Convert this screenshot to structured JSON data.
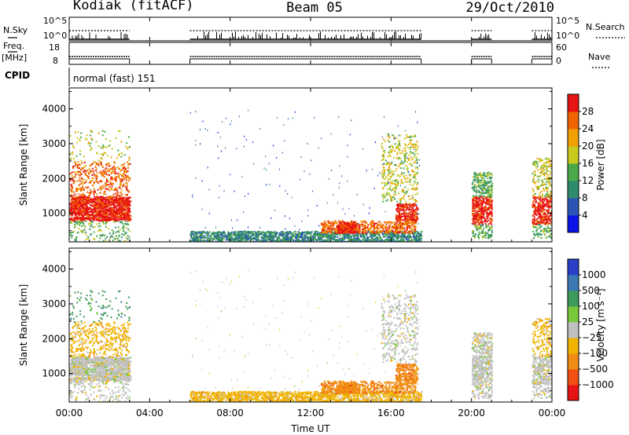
{
  "header": {
    "site": "Kodiak (fitACF)",
    "beam": "Beam 05",
    "date": "29/Oct/2010"
  },
  "noise_panel": {
    "left_label": "N.Sky",
    "right_label": "N.Search",
    "ticks": [
      "10^5",
      "10^0"
    ]
  },
  "freq_panel": {
    "left_label_top": "Freq.",
    "left_label_bottom": "[MHz]",
    "right_label": "Nave",
    "left_ticks": [
      "18",
      "8"
    ],
    "right_ticks": [
      "60",
      "0"
    ]
  },
  "cpid": {
    "label": "CPID",
    "value": "normal (fast) 151"
  },
  "chart_data": [
    {
      "type": "heatmap",
      "name": "power",
      "ylabel": "Slant Range [km]",
      "xlabel": "",
      "x_ticks": [
        "00:00",
        "04:00",
        "08:00",
        "12:00",
        "16:00",
        "20:00",
        "00:00"
      ],
      "xlim": [
        0,
        24
      ],
      "ylim": [
        180,
        4600
      ],
      "y_ticks": [
        1000,
        2000,
        3000,
        4000
      ],
      "colorbar": {
        "label": "Power [dB]",
        "ticks": [
          "4",
          "8",
          "12",
          "16",
          "20",
          "24",
          "28"
        ],
        "colors": [
          "#0a14e6",
          "#2a55b5",
          "#2f8a6e",
          "#4aa84a",
          "#c8c81e",
          "#f0a000",
          "#f06400",
          "#e61414"
        ]
      },
      "data_coverage_hours": [
        [
          0,
          3
        ],
        [
          6,
          17.5
        ],
        [
          20,
          21
        ],
        [
          23,
          24
        ]
      ]
    },
    {
      "type": "heatmap",
      "name": "velocity",
      "ylabel": "Slant Range [km]",
      "xlabel": "Time UT",
      "x_ticks": [
        "00:00",
        "04:00",
        "08:00",
        "12:00",
        "16:00",
        "20:00",
        "00:00"
      ],
      "xlim": [
        0,
        24
      ],
      "ylim": [
        180,
        4600
      ],
      "y_ticks": [
        1000,
        2000,
        3000,
        4000
      ],
      "colorbar": {
        "label": "Velocity [m s⁻¹]",
        "ticks": [
          "1000",
          "500",
          "100",
          "25",
          "−25",
          "−100",
          "−500",
          "−1000"
        ],
        "colors": [
          "#2a40c8",
          "#3c78b4",
          "#3c9a5a",
          "#78c83c",
          "#c0c0c0",
          "#f0b400",
          "#f08c14",
          "#f05014",
          "#e61414"
        ]
      },
      "data_coverage_hours": [
        [
          0,
          3
        ],
        [
          6,
          17.5
        ],
        [
          20,
          21
        ],
        [
          23,
          24
        ]
      ]
    }
  ]
}
